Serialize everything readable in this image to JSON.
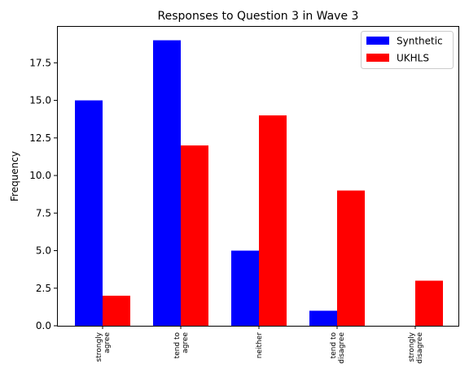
{
  "chart_data": {
    "type": "bar",
    "title": "Responses to Question 3 in Wave 3",
    "xlabel": "",
    "ylabel": "Frequency",
    "categories": [
      [
        "strongly",
        "agree"
      ],
      [
        "tend to",
        "agree"
      ],
      [
        "neither"
      ],
      [
        "tend to",
        "disagree"
      ],
      [
        "strongly",
        "disagree"
      ]
    ],
    "series": [
      {
        "name": "Synthetic",
        "color": "#0000ff",
        "values": [
          15,
          19,
          5,
          1,
          0
        ]
      },
      {
        "name": "UKHLS",
        "color": "#ff0000",
        "values": [
          2,
          12,
          14,
          9,
          3
        ]
      }
    ],
    "ylim": [
      0,
      19.95
    ],
    "yticks": [
      "0.0",
      "2.5",
      "5.0",
      "7.5",
      "10.0",
      "12.5",
      "15.0",
      "17.5"
    ],
    "legend_position": "top-right",
    "grid": false
  }
}
